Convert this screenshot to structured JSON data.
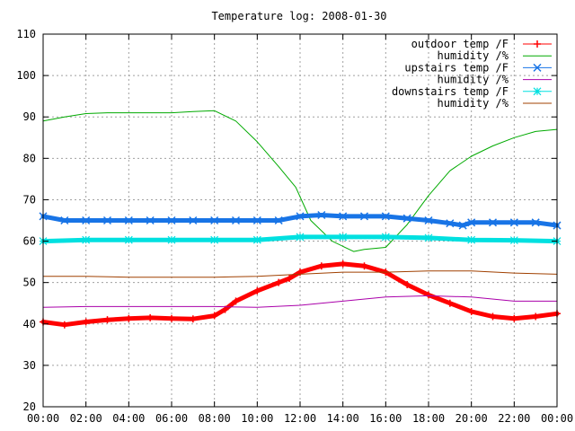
{
  "chart_data": {
    "type": "line",
    "title": "Temperature log: 2008-01-30",
    "xlabel": "",
    "ylabel": "",
    "x_ticks": [
      "00:00",
      "02:00",
      "04:00",
      "06:00",
      "08:00",
      "10:00",
      "12:00",
      "14:00",
      "16:00",
      "18:00",
      "20:00",
      "22:00",
      "00:00"
    ],
    "xlim": [
      0,
      24
    ],
    "y_ticks": [
      20,
      30,
      40,
      50,
      60,
      70,
      80,
      90,
      100,
      110
    ],
    "ylim": [
      20,
      110
    ],
    "grid": true,
    "legend_position": "top-right",
    "series": [
      {
        "name": "outdoor temp /F",
        "color": "#ff0000",
        "marker": "plus",
        "x": [
          0,
          1,
          2,
          3,
          4,
          5,
          6,
          7,
          8,
          8.5,
          9,
          10,
          11,
          11.5,
          12,
          13,
          14,
          15,
          16,
          17,
          18,
          19,
          20,
          21,
          22,
          23,
          24
        ],
        "y": [
          40.5,
          39.8,
          40.5,
          41,
          41.3,
          41.5,
          41.3,
          41.2,
          42,
          43.5,
          45.5,
          48,
          50,
          51,
          52.5,
          54,
          54.5,
          54,
          52.5,
          49.5,
          47,
          45,
          43,
          41.8,
          41.3,
          41.8,
          42.5
        ]
      },
      {
        "name": "humidity /%",
        "color": "#00aa00",
        "marker": "none",
        "x": [
          0,
          1,
          2,
          3,
          4,
          5,
          6,
          7,
          8,
          9,
          10,
          11,
          11.8,
          12.5,
          13.5,
          14.5,
          15,
          16,
          17,
          18,
          19,
          20,
          21,
          22,
          23,
          24
        ],
        "y": [
          89,
          90,
          90.8,
          91,
          91,
          91,
          91,
          91.3,
          91.5,
          89,
          84,
          78,
          73,
          65,
          60,
          57.5,
          58,
          58.5,
          64,
          71,
          77,
          80.5,
          83,
          85,
          86.5,
          87
        ]
      },
      {
        "name": "upstairs temp /F",
        "color": "#1874e6",
        "marker": "x",
        "x": [
          0,
          1,
          2,
          3,
          4,
          5,
          6,
          7,
          8,
          9,
          10,
          11,
          12,
          13,
          14,
          15,
          16,
          17,
          18,
          19,
          19.6,
          20,
          21,
          22,
          23,
          24
        ],
        "y": [
          66,
          65,
          65,
          65,
          65,
          65,
          65,
          65,
          65,
          65,
          65,
          65,
          66,
          66.3,
          66,
          66,
          66,
          65.5,
          65,
          64.3,
          63.8,
          64.5,
          64.5,
          64.5,
          64.5,
          63.8
        ]
      },
      {
        "name": "humidity /%",
        "color": "#aa00aa",
        "marker": "none",
        "x": [
          0,
          2,
          4,
          6,
          8,
          10,
          12,
          14,
          16,
          18,
          20,
          22,
          24
        ],
        "y": [
          44,
          44.2,
          44.2,
          44.2,
          44.2,
          44,
          44.5,
          45.5,
          46.5,
          46.8,
          46.5,
          45.5,
          45.5
        ]
      },
      {
        "name": "downstairs temp /F",
        "color": "#00e0e0",
        "marker": "star",
        "x": [
          0,
          2,
          4,
          6,
          8,
          10,
          12,
          14,
          16,
          18,
          20,
          22,
          24
        ],
        "y": [
          60,
          60.3,
          60.3,
          60.3,
          60.3,
          60.3,
          61,
          61,
          61,
          60.8,
          60.3,
          60.2,
          60
        ]
      },
      {
        "name": "humidity /%",
        "color": "#a04000",
        "marker": "none",
        "x": [
          0,
          2,
          4,
          6,
          8,
          10,
          12,
          14,
          16,
          18,
          20,
          22,
          24
        ],
        "y": [
          51.5,
          51.5,
          51.3,
          51.3,
          51.3,
          51.5,
          52,
          52.5,
          52.5,
          52.8,
          52.8,
          52.3,
          52
        ]
      }
    ]
  }
}
